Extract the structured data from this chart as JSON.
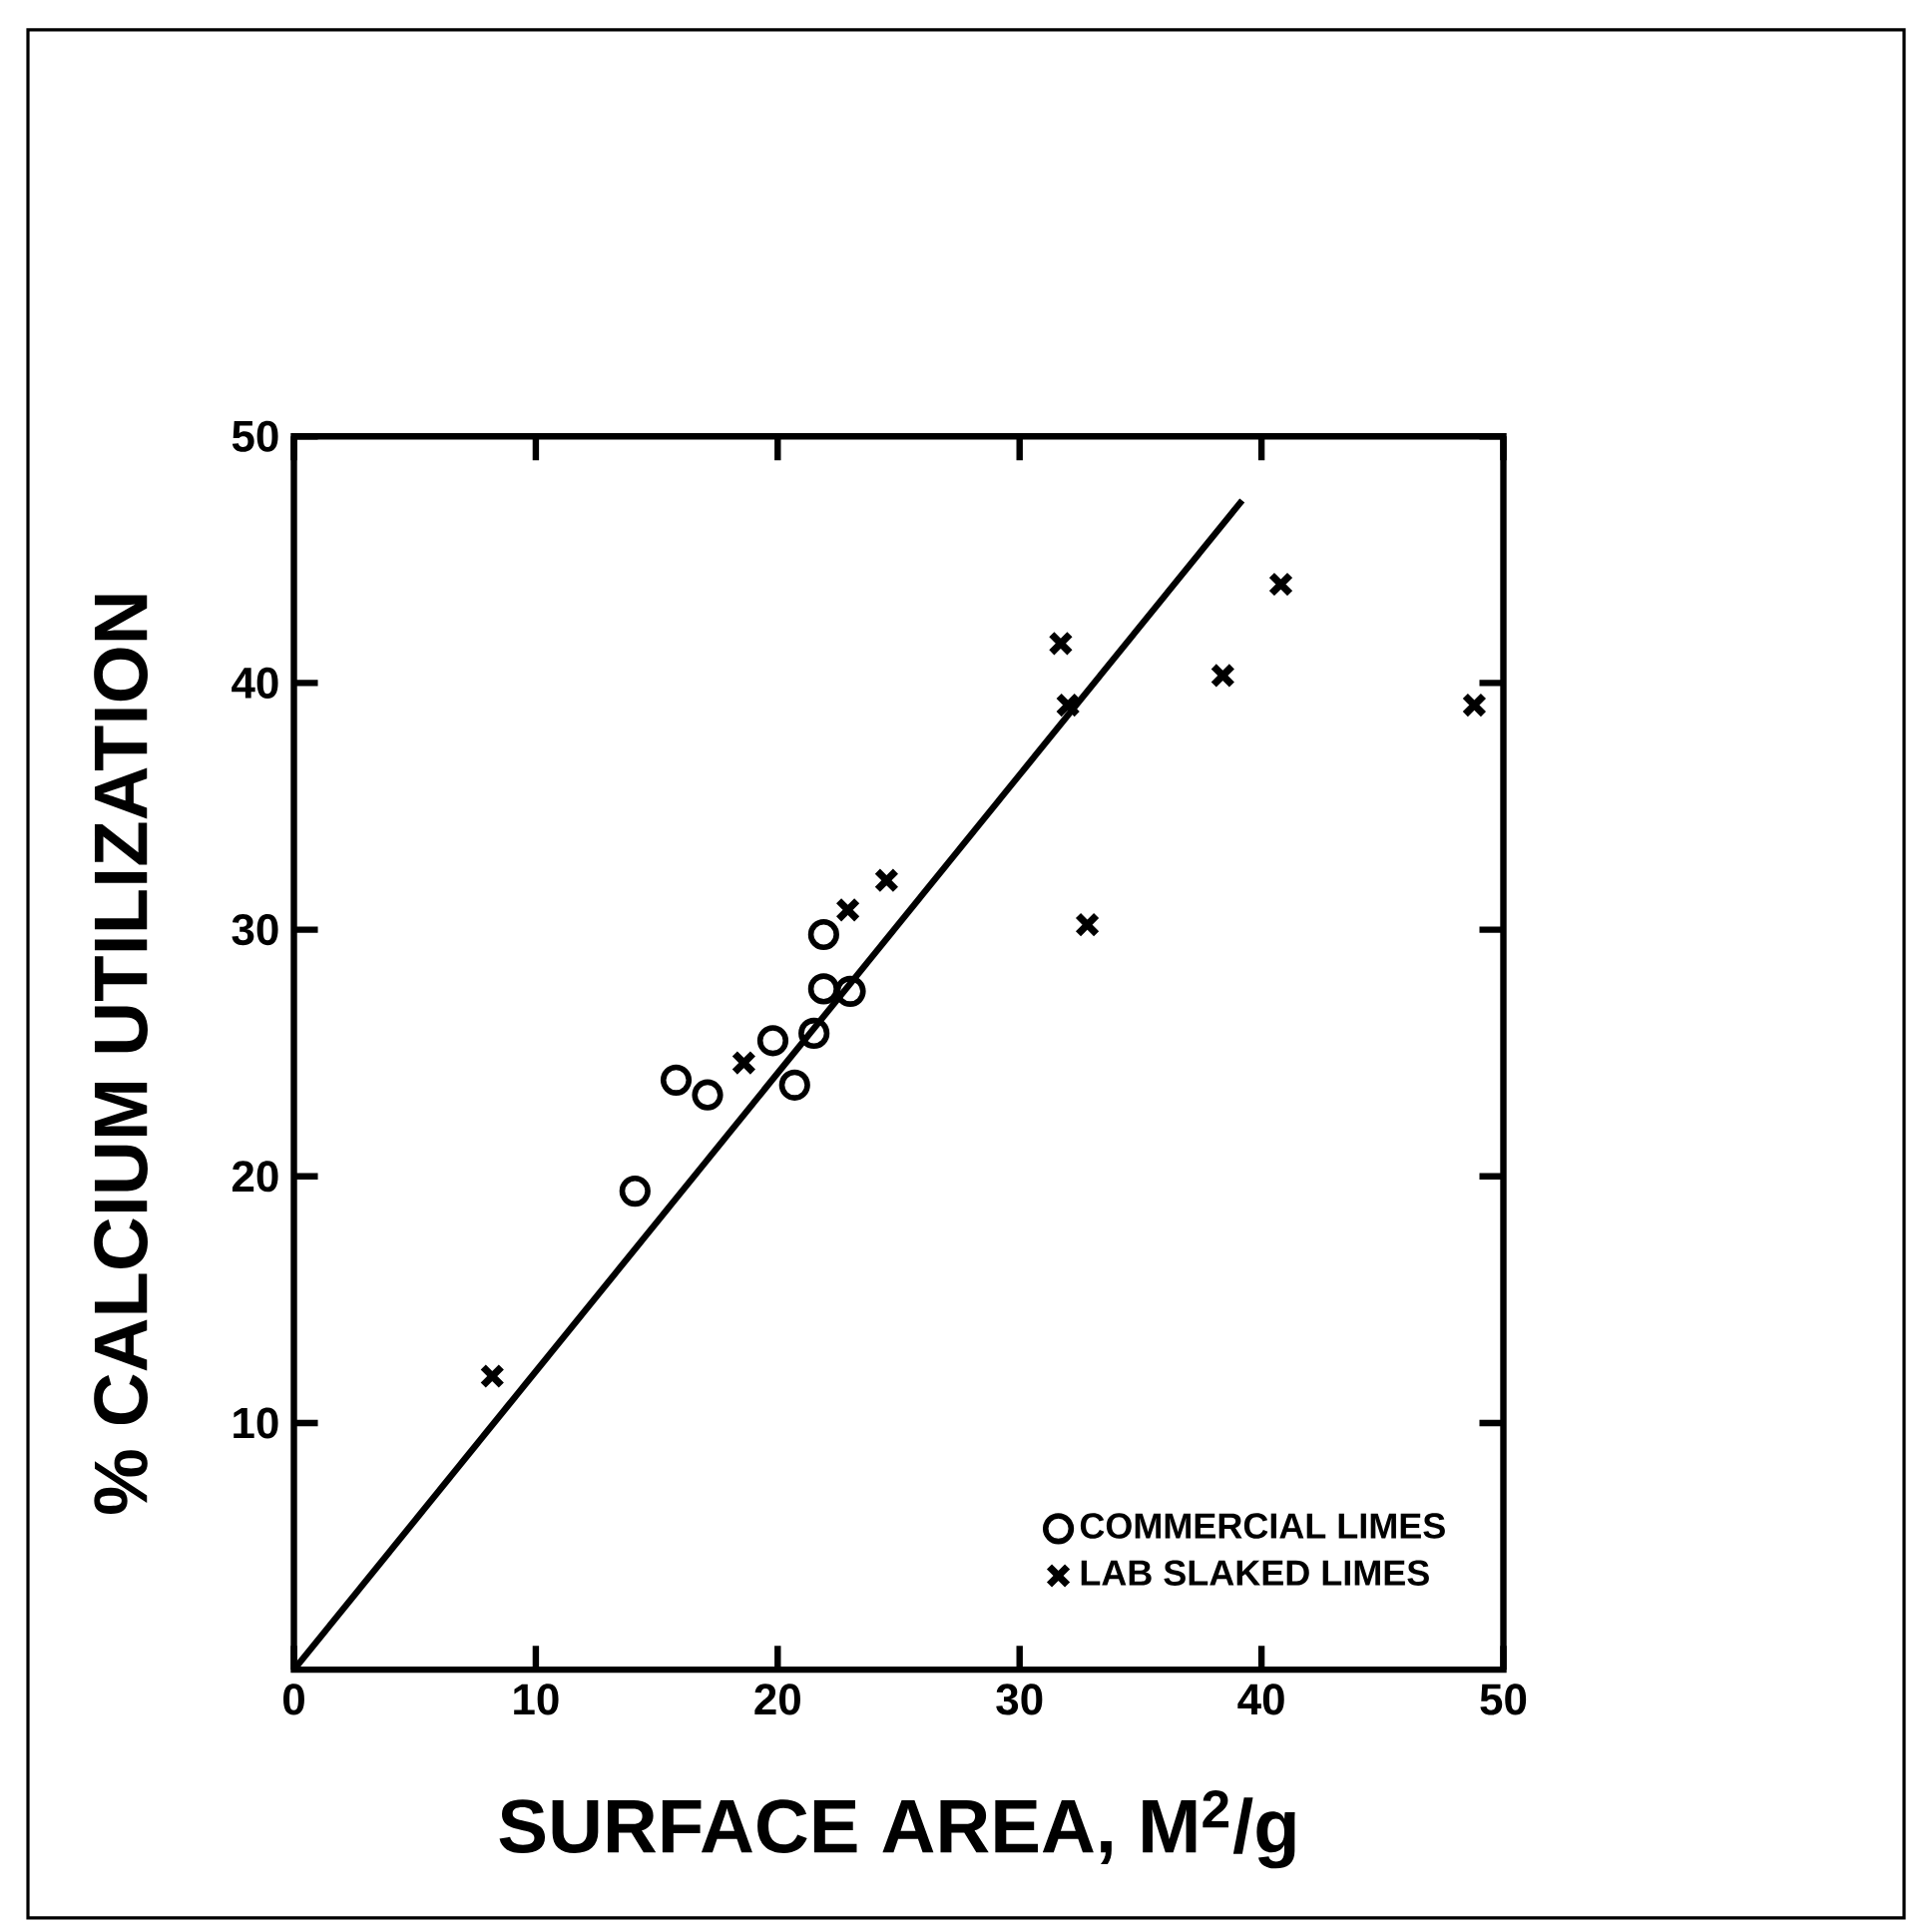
{
  "chart_data": {
    "type": "scatter",
    "xlabel": "SURFACE AREA, M$^{2}$/g",
    "ylabel": "% CALCIUM UTILIZATION",
    "xlim": [
      0,
      50
    ],
    "ylim": [
      0,
      50
    ],
    "xticks": [
      0,
      10,
      20,
      30,
      40,
      50
    ],
    "yticks": [
      10,
      20,
      30,
      40,
      50
    ],
    "grid": false,
    "legend": "bottom right",
    "series": [
      {
        "name": "COMMERCIAL LIMES",
        "color": "#000000",
        "marker": "circle",
        "x": [
          14.1,
          15.8,
          17.1,
          19.8,
          21.5,
          20.7,
          21.9,
          23.0,
          21.9
        ],
        "values": [
          19.4,
          23.9,
          23.3,
          25.5,
          25.8,
          23.7,
          27.6,
          27.5,
          29.8
        ]
      },
      {
        "name": "LAB SLAKED LIMES",
        "color": "#000000",
        "marker": "cross",
        "x": [
          8.2,
          18.6,
          22.9,
          24.5,
          31.7,
          32.0,
          32.8,
          38.4,
          40.8,
          48.8
        ],
        "values": [
          11.9,
          24.6,
          30.8,
          32.0,
          41.6,
          39.1,
          30.2,
          40.3,
          44.0,
          39.1
        ]
      },
      {
        "type": "line",
        "color": "#000000",
        "marker": "none",
        "line_style": "solid",
        "x": [
          0,
          39.2
        ],
        "values": [
          0,
          47.4
        ]
      }
    ]
  }
}
